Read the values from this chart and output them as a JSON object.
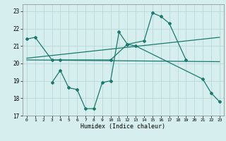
{
  "title": "",
  "xlabel": "Humidex (Indice chaleur)",
  "x_values": [
    0,
    1,
    2,
    3,
    4,
    5,
    6,
    7,
    8,
    9,
    10,
    11,
    12,
    13,
    14,
    15,
    16,
    17,
    18,
    19,
    20,
    21,
    22,
    23
  ],
  "line1_x": [
    0,
    1,
    3,
    4,
    10,
    12,
    14,
    15,
    16,
    17,
    19
  ],
  "line1_y": [
    21.4,
    21.5,
    20.2,
    20.2,
    20.2,
    21.1,
    21.3,
    22.9,
    22.7,
    22.3,
    20.2
  ],
  "line2_x": [
    3,
    4,
    5,
    6,
    7,
    8,
    9,
    10,
    11,
    12,
    13,
    21,
    22,
    23
  ],
  "line2_y": [
    18.9,
    19.6,
    18.6,
    18.5,
    17.4,
    17.4,
    18.9,
    19.0,
    21.8,
    21.1,
    21.0,
    19.1,
    18.3,
    17.8
  ],
  "trend1_x": [
    0,
    23
  ],
  "trend1_y": [
    20.3,
    21.5
  ],
  "trend2_x": [
    0,
    23
  ],
  "trend2_y": [
    20.2,
    20.1
  ],
  "line_color": "#1a7a6e",
  "bg_color": "#d6eeee",
  "grid_color": "#b8d8d8",
  "ylim": [
    17,
    23.4
  ],
  "yticks": [
    17,
    18,
    19,
    20,
    21,
    22,
    23
  ],
  "xlim": [
    -0.5,
    23.5
  ]
}
